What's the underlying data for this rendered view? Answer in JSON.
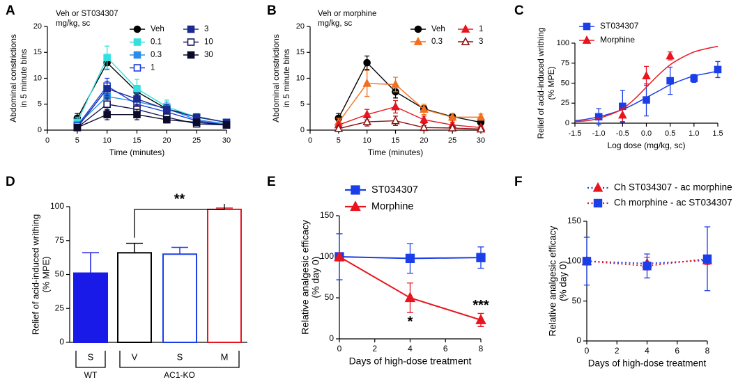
{
  "chart_data": [
    {
      "type": "line",
      "panel": "A",
      "annotation": [
        "Veh or ST034307",
        "mg/kg, sc"
      ],
      "xlabel": "Time (minutes)",
      "ylabel": [
        "Abdominal constrictions",
        "in 5 minute bins"
      ],
      "x": [
        5,
        10,
        15,
        20,
        25,
        30
      ],
      "xlim": [
        0,
        30
      ],
      "xticks": [
        0,
        5,
        10,
        15,
        20,
        25,
        30
      ],
      "ylim": [
        0,
        20
      ],
      "yticks": [
        0,
        5,
        10,
        15,
        20
      ],
      "series": [
        {
          "name": "Veh",
          "color": "#000000",
          "marker": "circle",
          "open": false,
          "values": [
            2.3,
            13,
            7.4,
            4.1,
            2.6,
            1.5
          ],
          "errors": [
            0.9,
            1.3,
            1.2,
            0.6,
            0.6,
            0.4
          ]
        },
        {
          "name": "0.1",
          "color": "#33e0e0",
          "marker": "square",
          "open": false,
          "values": [
            1.5,
            14,
            8,
            4.5,
            2.5,
            1.5
          ],
          "errors": [
            1,
            2.2,
            1.8,
            1.3,
            0.7,
            0.5
          ]
        },
        {
          "name": "0.3",
          "color": "#2a8ee8",
          "marker": "square",
          "open": false,
          "values": [
            1,
            6.5,
            5.5,
            4.2,
            2,
            1.2
          ],
          "errors": [
            0.6,
            1.3,
            1.5,
            1.2,
            0.5,
            0.4
          ]
        },
        {
          "name": "1",
          "color": "#1a3ee0",
          "marker": "square",
          "open": true,
          "values": [
            0.8,
            8.5,
            5,
            3.5,
            1.8,
            1
          ],
          "errors": [
            0.5,
            1.5,
            1.2,
            1,
            0.5,
            0.4
          ]
        },
        {
          "name": "3",
          "color": "#1a2a90",
          "marker": "square",
          "open": false,
          "values": [
            0.5,
            8,
            6,
            4,
            2.5,
            1.5
          ],
          "errors": [
            0.4,
            1.4,
            1.2,
            0.9,
            0.6,
            0.4
          ]
        },
        {
          "name": "10",
          "color": "#15155a",
          "marker": "square",
          "open": true,
          "values": [
            0.5,
            5,
            4,
            2.5,
            1.2,
            1
          ],
          "errors": [
            0.4,
            1.2,
            1,
            0.7,
            0.4,
            0.3
          ]
        },
        {
          "name": "30",
          "color": "#0a0a2a",
          "marker": "square",
          "open": false,
          "values": [
            0.5,
            3,
            3,
            2,
            1.5,
            1
          ],
          "errors": [
            0.4,
            1,
            1,
            0.6,
            0.4,
            0.3
          ]
        }
      ]
    },
    {
      "type": "line",
      "panel": "B",
      "annotation": [
        "Veh or morphine",
        "mg/kg, sc"
      ],
      "xlabel": "Time (minutes)",
      "ylabel": [
        "Abdominal constrictions",
        "in 5 minute bins"
      ],
      "x": [
        5,
        10,
        15,
        20,
        25,
        30
      ],
      "xlim": [
        0,
        30
      ],
      "xticks": [
        0,
        5,
        10,
        15,
        20,
        25,
        30
      ],
      "ylim": [
        0,
        20
      ],
      "yticks": [
        0,
        5,
        10,
        15,
        20
      ],
      "series": [
        {
          "name": "Veh",
          "color": "#000000",
          "marker": "circle",
          "open": false,
          "values": [
            2.3,
            13,
            7.4,
            4.1,
            2.6,
            1.5
          ],
          "errors": [
            0.9,
            1.3,
            1.2,
            0.6,
            0.6,
            0.4
          ]
        },
        {
          "name": "0.3",
          "color": "#f07020",
          "marker": "triangle",
          "open": false,
          "values": [
            1.5,
            9,
            8.8,
            4,
            2.5,
            2.5
          ],
          "errors": [
            0.8,
            2.5,
            1.4,
            1,
            0.7,
            0.6
          ]
        },
        {
          "name": "1",
          "color": "#e8141e",
          "marker": "triangle",
          "open": false,
          "values": [
            1,
            3,
            4.5,
            2,
            1,
            0.5
          ],
          "errors": [
            0.6,
            1,
            1.2,
            0.7,
            0.5,
            0.3
          ]
        },
        {
          "name": "3",
          "color": "#8b1010",
          "marker": "triangle",
          "open": true,
          "values": [
            0.3,
            1.6,
            1.8,
            0.5,
            0.4,
            0.2
          ],
          "errors": [
            0.3,
            0.8,
            0.9,
            0.4,
            0.3,
            0.2
          ]
        }
      ]
    },
    {
      "type": "scatter",
      "panel": "C",
      "xlabel": "Log dose (mg/kg, sc)",
      "ylabel": [
        "Relief of acid-induced writhing",
        "(% MPE)"
      ],
      "xlim": [
        -1.5,
        1.5
      ],
      "xticks": [
        -1.5,
        {
          "value": -1,
          "label": "-1.0"
        },
        -0.5,
        {
          "value": 0,
          "label": "0.0"
        },
        0.5,
        {
          "value": 1,
          "label": "1.0"
        },
        1.5
      ],
      "ylim": [
        0,
        100
      ],
      "yticks": [
        0,
        25,
        50,
        75,
        100
      ],
      "series": [
        {
          "name": "ST034307",
          "color": "#1a3ee8",
          "marker": "square",
          "open": false,
          "x": [
            -1,
            -0.5,
            0,
            0.5,
            1,
            1.5
          ],
          "values": [
            8,
            21,
            29,
            53,
            56,
            67
          ],
          "errors": [
            10,
            20,
            20,
            17,
            5,
            10
          ],
          "fit_x": [
            -1.5,
            -1.25,
            -1,
            -0.75,
            -0.5,
            -0.25,
            0,
            0.25,
            0.5,
            0.75,
            1,
            1.25,
            1.5
          ],
          "fit_values": [
            3,
            5,
            8,
            12,
            17,
            24,
            32,
            40,
            48,
            54,
            59,
            62,
            65
          ]
        },
        {
          "name": "Morphine",
          "color": "#e8141e",
          "marker": "triangle",
          "open": false,
          "x": [
            -0.5,
            0,
            0.5
          ],
          "values": [
            10,
            59,
            84
          ],
          "errors": [
            8,
            12,
            5
          ],
          "fit_x": [
            -1.5,
            -1.25,
            -1,
            -0.75,
            -0.5,
            -0.25,
            0,
            0.25,
            0.5,
            0.75,
            1,
            1.25,
            1.5
          ],
          "fit_values": [
            2,
            3,
            6,
            11,
            18,
            30,
            45,
            60,
            73,
            82,
            89,
            93,
            96
          ]
        }
      ]
    },
    {
      "type": "bar",
      "panel": "D",
      "ylabel": [
        "Relief of acid-induced writhing",
        "(% MPE)"
      ],
      "categories": [
        "S",
        "V",
        "S",
        "M"
      ],
      "values": [
        51,
        66,
        65,
        98
      ],
      "errors": [
        15,
        7,
        5,
        1
      ],
      "colors": [
        "#1a1ae8",
        "#000000",
        "#1a3ee8",
        "#e8141e"
      ],
      "filled": [
        true,
        false,
        false,
        false
      ],
      "groups": [
        "WT",
        "AC1-KO"
      ],
      "annotations": [
        "**"
      ],
      "annotation_color": "#e8141e",
      "ylim": [
        0,
        100
      ],
      "yticks": [
        0,
        25,
        50,
        75,
        100
      ]
    },
    {
      "type": "line",
      "panel": "E",
      "xlabel": "Days of high-dose treatment",
      "ylabel": [
        "Relative analgesic efficacy",
        "(% day 0)"
      ],
      "x": [
        0,
        4,
        8
      ],
      "xlim": [
        0,
        8
      ],
      "xticks": [
        0,
        2,
        4,
        6,
        8
      ],
      "ylim": [
        0,
        150
      ],
      "yticks": [
        0,
        50,
        100,
        150
      ],
      "annotations": [
        "*",
        "***"
      ],
      "annotation_color": "#e8141e",
      "series": [
        {
          "name": "ST034307",
          "color": "#1a3ee8",
          "marker": "square",
          "open": false,
          "values": [
            100,
            98,
            99
          ],
          "errors": [
            28,
            18,
            13
          ]
        },
        {
          "name": "Morphine",
          "color": "#e8141e",
          "marker": "triangle",
          "open": false,
          "values": [
            100,
            50,
            23
          ],
          "errors": [
            0,
            18,
            8
          ]
        }
      ]
    },
    {
      "type": "line",
      "panel": "F",
      "xlabel": "Days of high-dose treatment",
      "ylabel": [
        "Relative analgesic efficacy",
        "(% day 0)"
      ],
      "x": [
        0,
        4,
        8
      ],
      "xlim": [
        0,
        8
      ],
      "xticks": [
        0,
        2,
        4,
        6,
        8
      ],
      "ylim": [
        0,
        150
      ],
      "yticks": [
        0,
        50,
        100,
        150
      ],
      "series": [
        {
          "name": "Ch ST034307 - ac morphine",
          "color": "#e8141e",
          "line_color": "#1a3ee8",
          "line_style": "dotted",
          "marker": "triangle",
          "open": false,
          "values": [
            100,
            97,
            101
          ],
          "errors": [
            3,
            8,
            5
          ]
        },
        {
          "name": "Ch morphine - ac ST034307",
          "color": "#1a3ee8",
          "line_color": "#e8141e",
          "line_style": "dotted",
          "marker": "square",
          "open": false,
          "values": [
            100,
            94,
            103
          ],
          "errors": [
            30,
            15,
            40
          ]
        }
      ]
    }
  ]
}
